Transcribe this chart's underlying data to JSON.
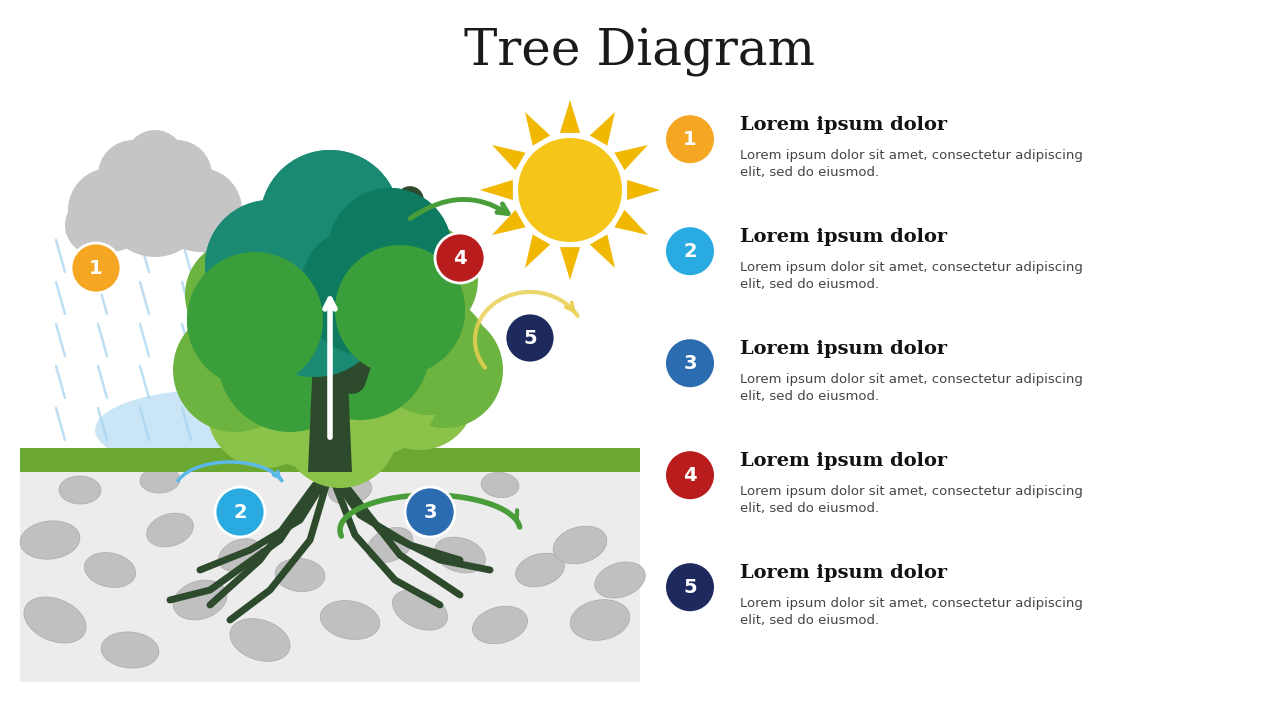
{
  "title": "Tree Diagram",
  "title_fontsize": 36,
  "background_color": "#ffffff",
  "steps": [
    {
      "num": "1",
      "color": "#F5A623",
      "title": "Lorem ipsum dolor",
      "body": "Lorem ipsum dolor sit amet, consectetur adipiscing\nelit, sed do eiusmod."
    },
    {
      "num": "2",
      "color": "#29ABE2",
      "title": "Lorem ipsum dolor",
      "body": "Lorem ipsum dolor sit amet, consectetur adipiscing\nelit, sed do eiusmod."
    },
    {
      "num": "3",
      "color": "#2B6CB0",
      "title": "Lorem ipsum dolor",
      "body": "Lorem ipsum dolor sit amet, consectetur adipiscing\nelit, sed do eiusmod."
    },
    {
      "num": "4",
      "color": "#B91C1C",
      "title": "Lorem ipsum dolor",
      "body": "Lorem ipsum dolor sit amet, consectetur adipiscing\nelit, sed do eiusmod."
    },
    {
      "num": "5",
      "color": "#1E2A5E",
      "title": "Lorem ipsum dolor",
      "body": "Lorem ipsum dolor sit amet, consectetur adipiscing\nelit, sed do eiusmod."
    }
  ],
  "ground_color": "#6BA832",
  "soil_color": "#ECECEC",
  "water_color": "#A8D4F0",
  "cloud_color": "#C5C5C5",
  "tree_trunk_color": "#2D4A2D",
  "sun_color": "#F5C518",
  "sun_ray_color": "#F0B800",
  "rain_color": "#A8D4F0",
  "root_color": "#2D4A2D",
  "arrow_green": "#4A9E3A",
  "canopy_teal": "#1A8A72",
  "canopy_green1": "#3A9E3A",
  "canopy_green2": "#6DB33F",
  "canopy_green3": "#8BC34A",
  "canopy_teal2": "#0E7A60"
}
